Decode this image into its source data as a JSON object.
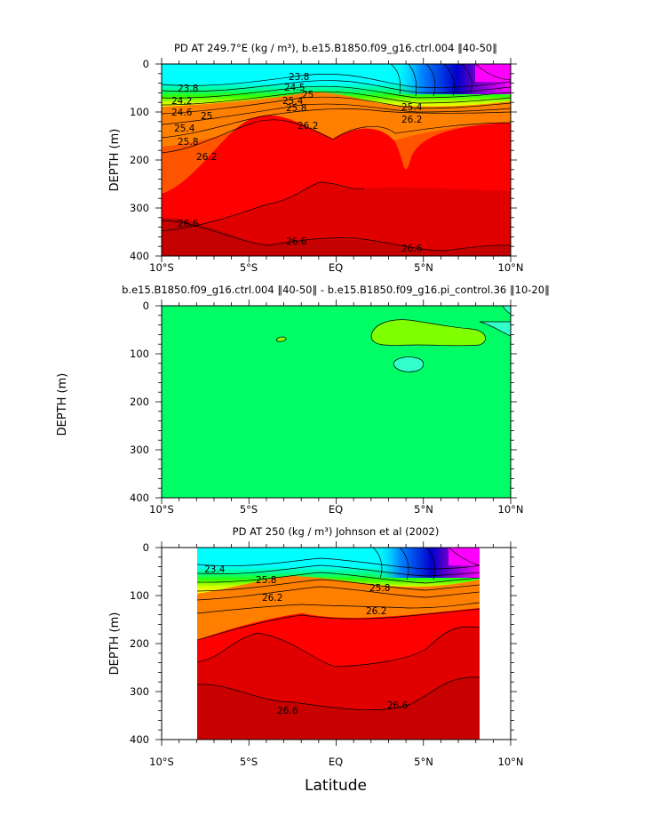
{
  "xlabel": "Latitude",
  "colors": {
    "cyan": "#00ffff",
    "dark_blue": "#0000cc",
    "magenta": "#ff00ff",
    "green_light": "#7fff00",
    "green": "#00ff66",
    "yellow": "#ffff00",
    "orange": "#ff7f00",
    "red": "#ff0000",
    "dark_red": "#d80000",
    "darker_red": "#c00000"
  },
  "chart_data": [
    {
      "type": "contour",
      "title": "PD AT 249.7°E (kg / m³), b.e15.B1850.f09_g16.ctrl.004 ‖40-50‖",
      "ylabel": "DEPTH (m)",
      "xlim": [
        -10,
        10
      ],
      "ylim": [
        400,
        0
      ],
      "x_ticks": [
        "10°S",
        "5°S",
        "EQ",
        "5°N",
        "10°N"
      ],
      "y_ticks": [
        "0",
        "100",
        "200",
        "300",
        "400"
      ],
      "contour_labels": [
        "23.8",
        "24.2",
        "24.6",
        "25",
        "25.4",
        "25.8",
        "26.2",
        "26.6",
        "23.8",
        "24.5",
        "25",
        "25.4",
        "25.8",
        "26.2",
        "26.6",
        "25.4",
        "26.2"
      ],
      "regions": [
        {
          "fill": "cyan",
          "x": [
            -10,
            10
          ],
          "depth": [
            0,
            50
          ]
        },
        {
          "fill": "dark_blue",
          "x": [
            5,
            10
          ],
          "depth": [
            0,
            40
          ]
        },
        {
          "fill": "magenta",
          "x": [
            7,
            10
          ],
          "depth": [
            0,
            20
          ]
        },
        {
          "fill": "orange",
          "x": [
            -10,
            10
          ],
          "depth": [
            120,
            220
          ]
        },
        {
          "fill": "red",
          "x": [
            -10,
            10
          ],
          "depth": [
            160,
            330
          ]
        },
        {
          "fill": "dark_red",
          "x": [
            -10,
            10
          ],
          "depth": [
            330,
            400
          ]
        }
      ]
    },
    {
      "type": "contour",
      "title": "b.e15.B1850.f09_g16.ctrl.004 ‖40-50‖ - b.e15.B1850.f09_g16.pi_control.36 ‖10-20‖",
      "ylabel": "DEPTH (m)",
      "xlim": [
        -10,
        10
      ],
      "ylim": [
        400,
        0
      ],
      "x_ticks": [
        "10°S",
        "5°S",
        "EQ",
        "5°N",
        "10°N"
      ],
      "y_ticks": [
        "0",
        "100",
        "200",
        "300",
        "400"
      ],
      "regions": [
        {
          "fill": "green",
          "x": [
            -10,
            10
          ],
          "depth": [
            0,
            400
          ]
        },
        {
          "fill": "green_light",
          "x": [
            2,
            8
          ],
          "depth": [
            30,
            90
          ]
        },
        {
          "fill": "cyan",
          "x": [
            3.5,
            5
          ],
          "depth": [
            100,
            140
          ]
        }
      ]
    },
    {
      "type": "contour",
      "title": "PD AT 250 (kg / m³) Johnson et al (2002)",
      "ylabel": "DEPTH (m)",
      "xlim": [
        -10,
        10
      ],
      "ylim": [
        400,
        0
      ],
      "x_ticks": [
        "10°S",
        "5°S",
        "EQ",
        "5°N",
        "10°N"
      ],
      "y_ticks": [
        "0",
        "100",
        "200",
        "300",
        "400"
      ],
      "data_x_range": [
        -8,
        8.2
      ],
      "contour_labels": [
        "23.4",
        "26.2",
        "26.2",
        "26.6",
        "26.6",
        "25.8"
      ],
      "regions": [
        {
          "fill": "cyan",
          "x": [
            -8,
            8.2
          ],
          "depth": [
            0,
            40
          ]
        },
        {
          "fill": "dark_blue",
          "x": [
            4,
            8.2
          ],
          "depth": [
            0,
            40
          ]
        },
        {
          "fill": "magenta",
          "x": [
            6,
            8.2
          ],
          "depth": [
            0,
            25
          ]
        },
        {
          "fill": "orange",
          "x": [
            -8,
            8.2
          ],
          "depth": [
            100,
            180
          ]
        },
        {
          "fill": "red",
          "x": [
            -8,
            8.2
          ],
          "depth": [
            150,
            280
          ]
        },
        {
          "fill": "dark_red",
          "x": [
            -8,
            8.2
          ],
          "depth": [
            280,
            400
          ]
        }
      ]
    }
  ]
}
